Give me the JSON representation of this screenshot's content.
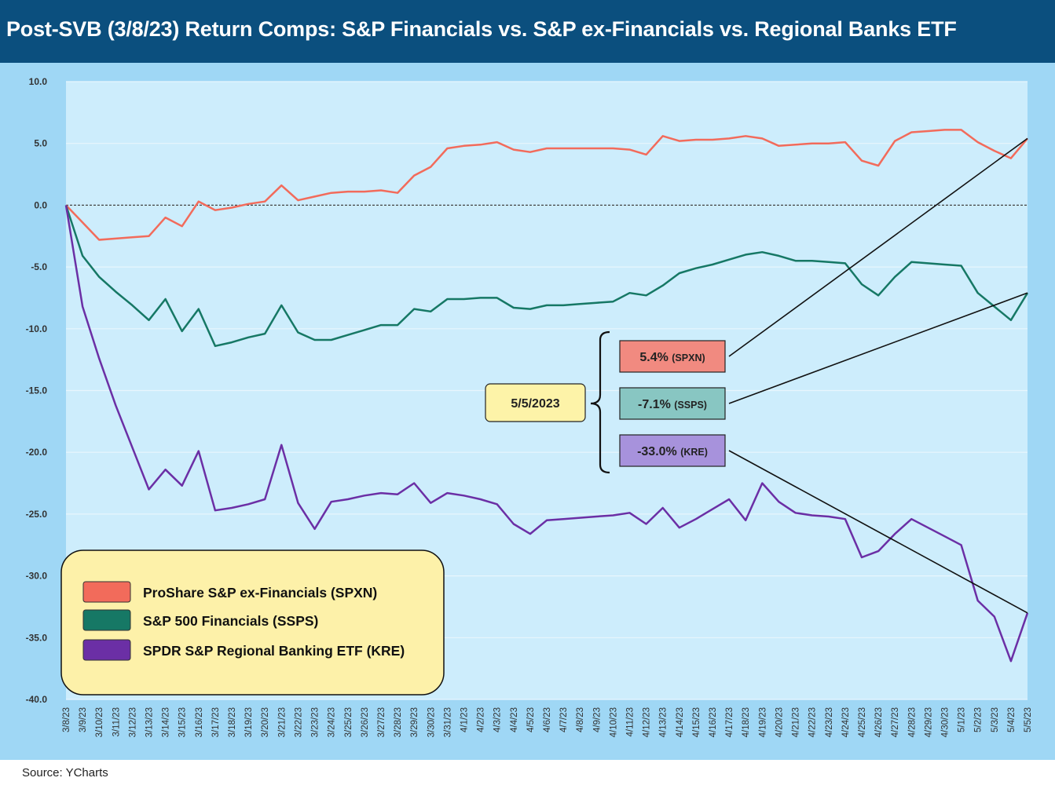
{
  "title": "Post-SVB (3/8/23) Return Comps: S&P Financials vs. S&P ex-Financials vs. Regional Banks ETF",
  "source": "Source: YCharts",
  "colors": {
    "spxn": "#f26b5b",
    "ssps": "#167865",
    "kre": "#6b2fa5",
    "spxn_box": "#f18a80",
    "ssps_box": "#88c6c2",
    "kre_box": "#a792dc",
    "date_box": "#fdf3a8",
    "legend_box": "#fdf1a9"
  },
  "chart_data": {
    "type": "line",
    "title": "Post-SVB (3/8/23) Return Comps: S&P Financials vs. S&P ex-Financials vs. Regional Banks ETF",
    "xlabel": "",
    "ylabel": "",
    "ylim": [
      -40,
      10
    ],
    "yticks": [
      10,
      5,
      0,
      -5,
      -10,
      -15,
      -20,
      -25,
      -30,
      -35,
      -40
    ],
    "ytick_labels": [
      "10.0",
      "5.0",
      "0.0",
      "-5.0",
      "-10.0",
      "-15.0",
      "-20.0",
      "-25.0",
      "-30.0",
      "-35.0",
      "-40.0"
    ],
    "categories": [
      "3/8/23",
      "3/9/23",
      "3/10/23",
      "3/11/23",
      "3/12/23",
      "3/13/23",
      "3/14/23",
      "3/15/23",
      "3/16/23",
      "3/17/23",
      "3/18/23",
      "3/19/23",
      "3/20/23",
      "3/21/23",
      "3/22/23",
      "3/23/23",
      "3/24/23",
      "3/25/23",
      "3/26/23",
      "3/27/23",
      "3/28/23",
      "3/29/23",
      "3/30/23",
      "3/31/23",
      "4/1/23",
      "4/2/23",
      "4/3/23",
      "4/4/23",
      "4/5/23",
      "4/6/23",
      "4/7/23",
      "4/8/23",
      "4/9/23",
      "4/10/23",
      "4/11/23",
      "4/12/23",
      "4/13/23",
      "4/14/23",
      "4/15/23",
      "4/16/23",
      "4/17/23",
      "4/18/23",
      "4/19/23",
      "4/20/23",
      "4/21/23",
      "4/22/23",
      "4/23/23",
      "4/24/23",
      "4/25/23",
      "4/26/23",
      "4/27/23",
      "4/28/23",
      "4/29/23",
      "4/30/23",
      "5/1/23",
      "5/2/23",
      "5/3/23",
      "5/4/23",
      "5/5/23"
    ],
    "series": [
      {
        "name": "ProShare S&P ex-Financials (SPXN)",
        "key": "spxn",
        "values": [
          0,
          -1.4,
          -2.8,
          -2.7,
          -2.6,
          -2.5,
          -1.0,
          -1.7,
          0.3,
          -0.4,
          -0.2,
          0.1,
          0.3,
          1.6,
          0.4,
          0.7,
          1.0,
          1.1,
          1.1,
          1.2,
          1.0,
          2.4,
          3.1,
          4.6,
          4.8,
          4.9,
          5.1,
          4.5,
          4.3,
          4.6,
          4.6,
          4.6,
          4.6,
          4.6,
          4.5,
          4.1,
          5.6,
          5.2,
          5.3,
          5.3,
          5.4,
          5.6,
          5.4,
          4.8,
          4.9,
          5.0,
          5.0,
          5.1,
          3.6,
          3.2,
          5.2,
          5.9,
          6.0,
          6.1,
          6.1,
          5.1,
          4.4,
          3.8,
          5.4
        ]
      },
      {
        "name": "S&P 500 Financials (SSPS)",
        "key": "ssps",
        "values": [
          0,
          -4.1,
          -5.8,
          -7.0,
          -8.1,
          -9.3,
          -7.6,
          -10.2,
          -8.4,
          -11.4,
          -11.1,
          -10.7,
          -10.4,
          -8.1,
          -10.3,
          -10.9,
          -10.9,
          -10.5,
          -10.1,
          -9.7,
          -9.7,
          -8.4,
          -8.6,
          -7.6,
          -7.6,
          -7.5,
          -7.5,
          -8.3,
          -8.4,
          -8.1,
          -8.1,
          -8.0,
          -7.9,
          -7.8,
          -7.1,
          -7.3,
          -6.5,
          -5.5,
          -5.1,
          -4.8,
          -4.4,
          -4.0,
          -3.8,
          -4.1,
          -4.5,
          -4.5,
          -4.6,
          -4.7,
          -6.4,
          -7.3,
          -5.8,
          -4.6,
          -4.7,
          -4.8,
          -4.9,
          -7.1,
          -8.2,
          -9.3,
          -7.1
        ]
      },
      {
        "name": "SPDR S&P Regional Banking ETF (KRE)",
        "key": "kre",
        "values": [
          0,
          -8.2,
          -12.4,
          -16.2,
          -19.6,
          -23.0,
          -21.4,
          -22.7,
          -19.9,
          -24.7,
          -24.5,
          -24.2,
          -23.8,
          -19.4,
          -24.1,
          -26.2,
          -24.0,
          -23.8,
          -23.5,
          -23.3,
          -23.4,
          -22.5,
          -24.1,
          -23.3,
          -23.5,
          -23.8,
          -24.2,
          -25.8,
          -26.6,
          -25.5,
          -25.4,
          -25.3,
          -25.2,
          -25.1,
          -24.9,
          -25.8,
          -24.5,
          -26.1,
          -25.4,
          -24.6,
          -23.8,
          -25.5,
          -22.5,
          -24.0,
          -24.9,
          -25.1,
          -25.2,
          -25.4,
          -28.5,
          -28.0,
          -26.6,
          -25.4,
          -26.1,
          -26.8,
          -27.5,
          -32.0,
          -33.3,
          -36.9,
          -33.0
        ]
      }
    ],
    "annotations": {
      "date": "5/5/2023",
      "items": [
        {
          "key": "spxn",
          "value": "5.4%",
          "ticker": "(SPXN)"
        },
        {
          "key": "ssps",
          "value": "-7.1%",
          "ticker": "(SSPS)"
        },
        {
          "key": "kre",
          "value": "-33.0%",
          "ticker": "(KRE)"
        }
      ]
    },
    "legend": {
      "placement": "bottom-left",
      "entries": [
        "ProShare S&P ex-Financials (SPXN)",
        "S&P 500 Financials (SSPS)",
        "SPDR S&P Regional Banking ETF (KRE)"
      ]
    }
  }
}
